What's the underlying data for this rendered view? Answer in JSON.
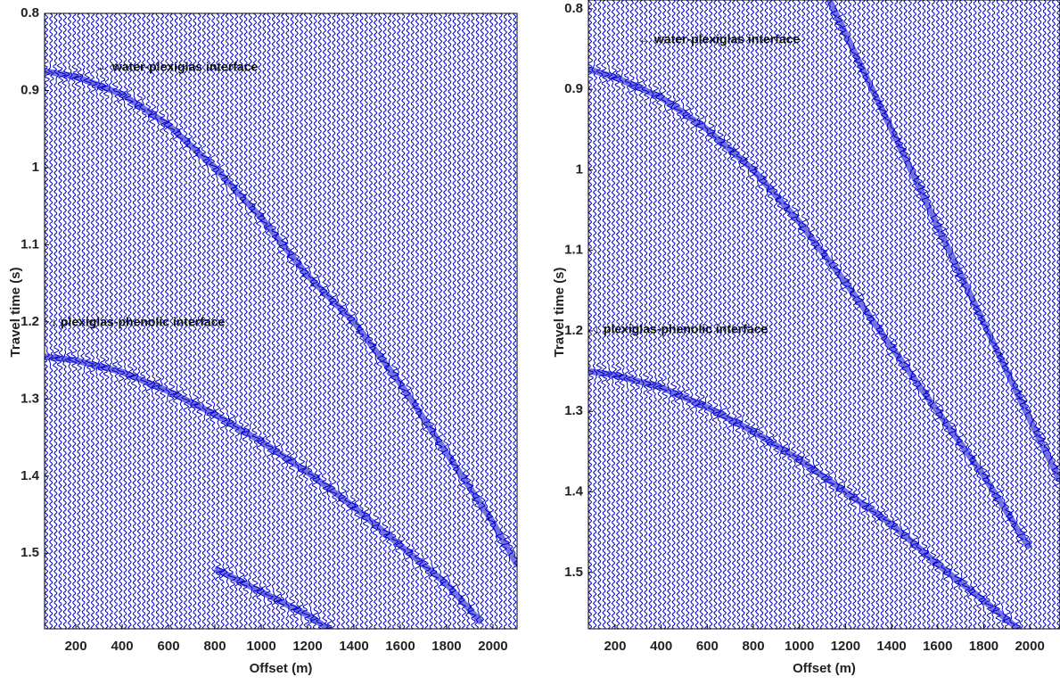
{
  "chart_data": [
    {
      "type": "seismic",
      "x_label": "Offset (m)",
      "y_label": "Travel time (s)",
      "annotations": [
        {
          "text": "← water-plexiglas interface"
        },
        {
          "text": "↓ plexiglas-phenolic interface"
        }
      ],
      "xlim": [
        65,
        2104
      ],
      "ylim": [
        0.8,
        1.598
      ],
      "xticks": [
        200,
        400,
        600,
        800,
        1000,
        1200,
        1400,
        1600,
        1800,
        2000
      ],
      "yticks": [
        0.8,
        0.9,
        1,
        1.1,
        1.2,
        1.3,
        1.4,
        1.5
      ],
      "series": [
        {
          "color": "#0000cc",
          "x": [
            65,
            200,
            400,
            600,
            800,
            1000,
            1200,
            1400,
            1600,
            1800,
            2000,
            2104
          ],
          "values": [
            0.875,
            0.882,
            0.905,
            0.945,
            1.0,
            1.065,
            1.14,
            1.2,
            1.28,
            1.37,
            1.46,
            1.515
          ]
        },
        {
          "color": "#0000cc",
          "x": [
            65,
            200,
            400,
            600,
            800,
            1000,
            1200,
            1400,
            1600,
            1800,
            1950
          ],
          "values": [
            1.245,
            1.25,
            1.265,
            1.29,
            1.32,
            1.355,
            1.395,
            1.44,
            1.49,
            1.54,
            1.59
          ]
        },
        {
          "color": "#0000cc",
          "x": [
            800,
            1000,
            1200,
            1300
          ],
          "values": [
            1.52,
            1.55,
            1.58,
            1.6
          ]
        }
      ]
    },
    {
      "type": "seismic",
      "x_label": "Offset (m)",
      "y_label": "Travel time (s)",
      "annotations": [
        {
          "text": "← water-plexiglas interface"
        },
        {
          "text": "↓ plexiglas-phenolic interface"
        }
      ],
      "xlim": [
        84,
        2131
      ],
      "ylim": [
        0.789,
        1.57
      ],
      "xticks": [
        200,
        400,
        600,
        800,
        1000,
        1200,
        1400,
        1600,
        1800,
        2000
      ],
      "yticks": [
        0.8,
        0.9,
        1,
        1.1,
        1.2,
        1.3,
        1.4,
        1.5
      ],
      "series": [
        {
          "color": "#0000cc",
          "x": [
            84,
            200,
            400,
            600,
            800,
            1000,
            1200,
            1400,
            1600,
            1800,
            2000
          ],
          "values": [
            0.875,
            0.885,
            0.91,
            0.95,
            1.0,
            1.065,
            1.14,
            1.22,
            1.3,
            1.38,
            1.47
          ]
        },
        {
          "color": "#0000cc",
          "x": [
            84,
            200,
            400,
            600,
            800,
            1000,
            1200,
            1400,
            1600,
            1800,
            1950
          ],
          "values": [
            1.25,
            1.255,
            1.27,
            1.295,
            1.325,
            1.36,
            1.4,
            1.44,
            1.49,
            1.535,
            1.57
          ]
        },
        {
          "color": "#0000cc",
          "x": [
            1130,
            1400,
            1600,
            1800,
            2000,
            2131
          ],
          "values": [
            0.789,
            0.95,
            1.07,
            1.19,
            1.31,
            1.386
          ]
        }
      ]
    }
  ]
}
